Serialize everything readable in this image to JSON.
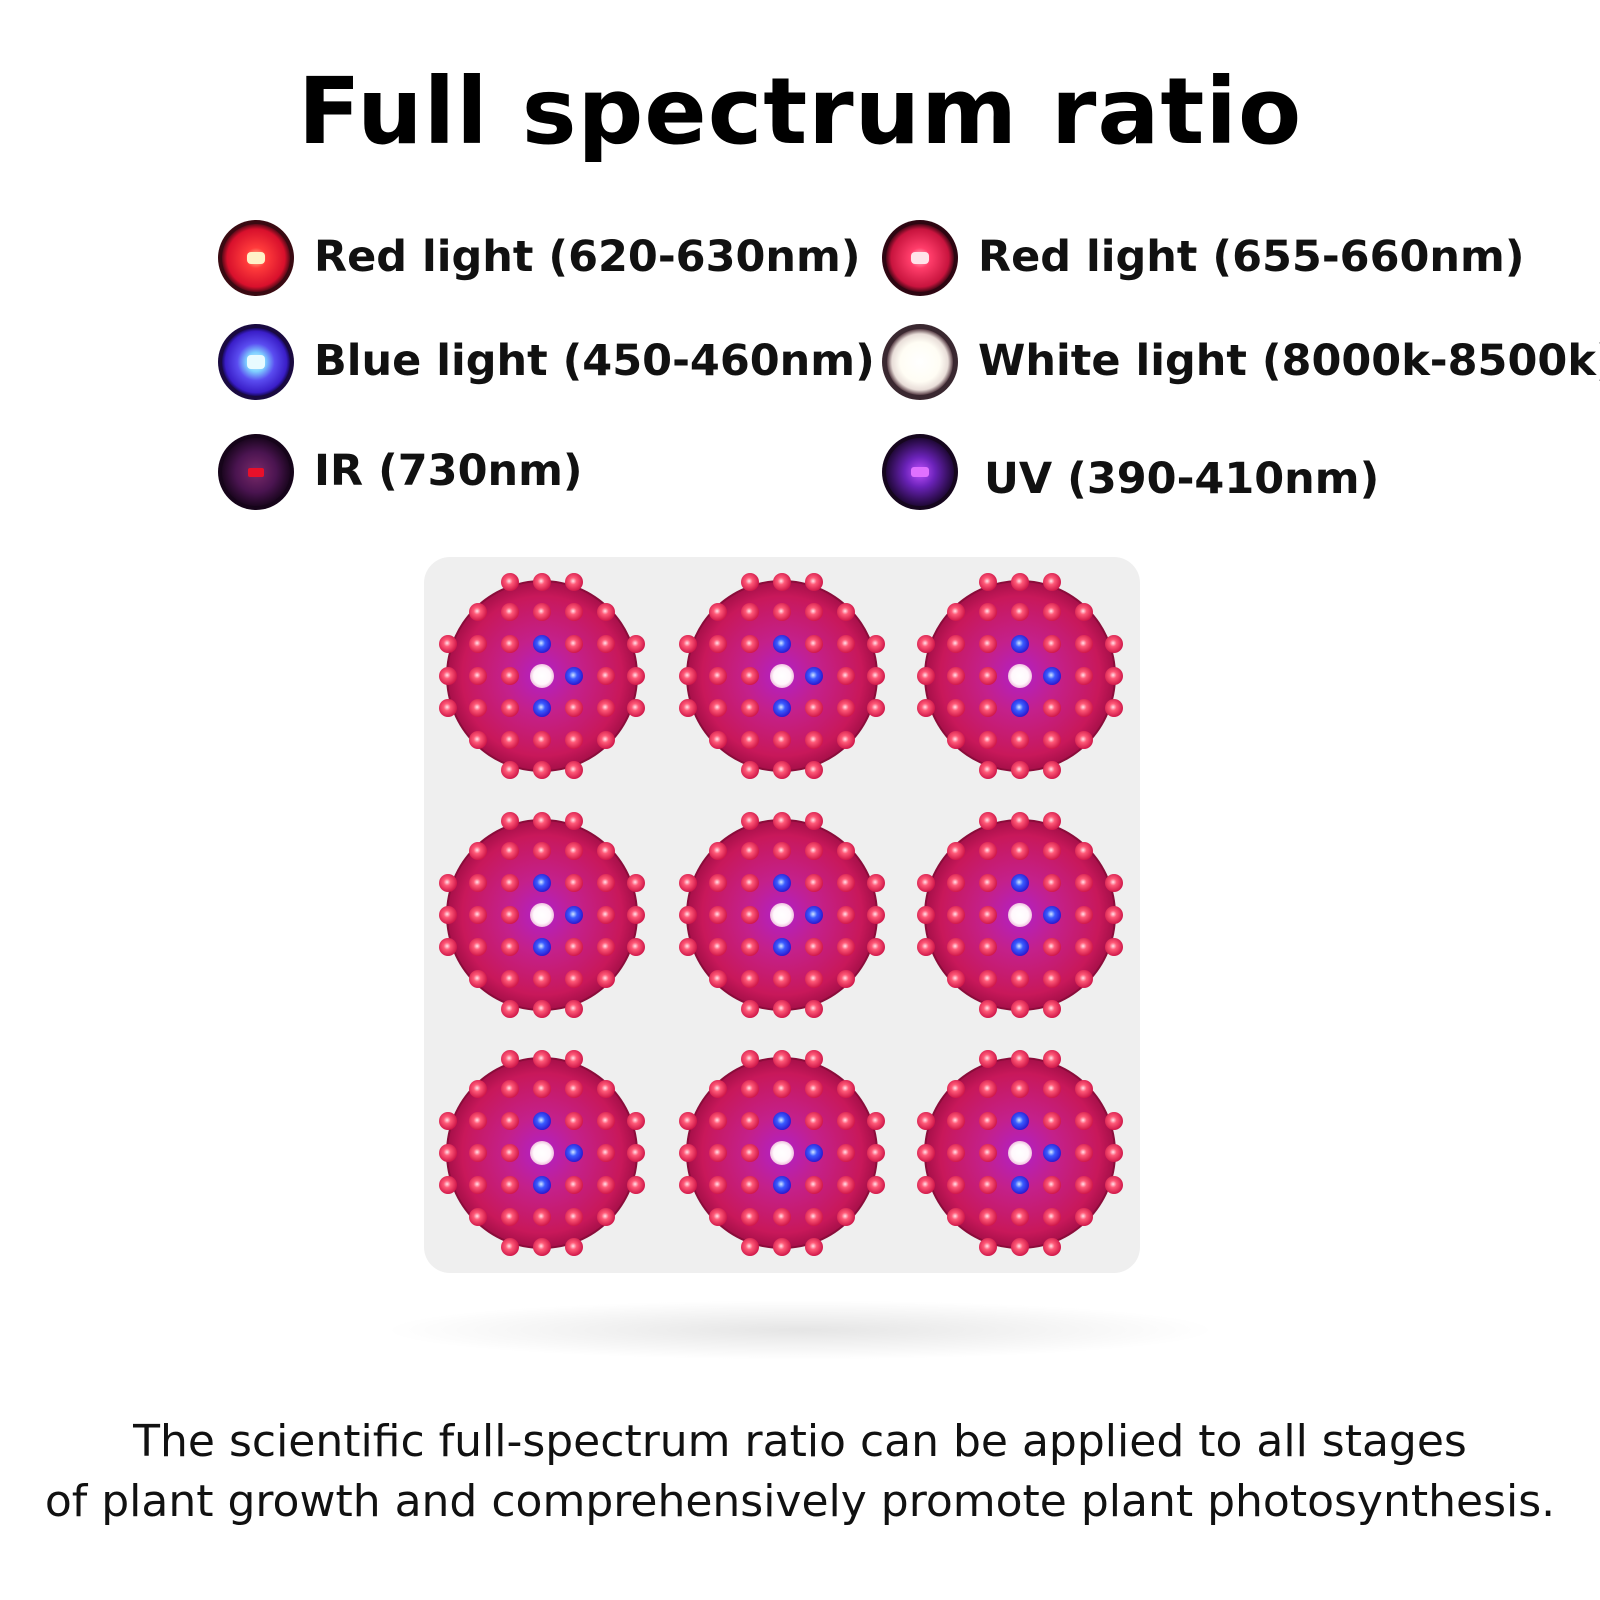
{
  "title": "Full spectrum ratio",
  "legend": [
    {
      "label": "Red light (620-630nm)",
      "icon": "red-led-icon",
      "color": "#e8132f"
    },
    {
      "label": "Red light (655-660nm)",
      "icon": "deep-red-led-icon",
      "color": "#d4144c"
    },
    {
      "label": "Blue light (450-460nm)",
      "icon": "blue-led-icon",
      "color": "#3c3ce8"
    },
    {
      "label": "White light (8000k-8500k)",
      "icon": "white-led-icon",
      "color": "#ffffff"
    },
    {
      "label": "IR (730nm)",
      "icon": "ir-led-icon",
      "color": "#3a0f4a"
    },
    {
      "label": "UV (390-410nm)",
      "icon": "uv-led-icon",
      "color": "#4a1a8a"
    }
  ],
  "panel": {
    "module_count": 9,
    "module_color": "#c41c5c",
    "panel_color": "#eeeeee"
  },
  "caption": {
    "line1": "The scientific full-spectrum ratio can be applied to all stages",
    "line2": "of plant growth and comprehensively promote plant photosynthesis."
  }
}
